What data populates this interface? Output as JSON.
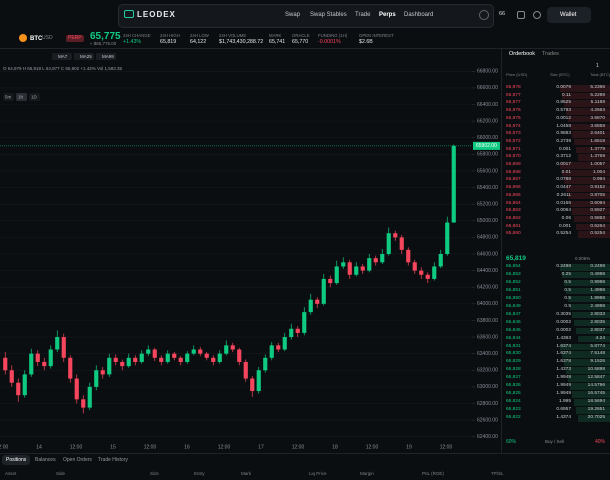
{
  "nav": {
    "logo": "LEODEX",
    "links": [
      "Swap",
      "Swap Stables",
      "Trade",
      "Perps",
      "Dashboard"
    ],
    "badge": "66",
    "wallet": "Wallet"
  },
  "ticker": {
    "symbol": "BTC",
    "quote": "USD",
    "tag": "PERP",
    "price": "65,775",
    "price_usd": "≈ $65,775.00",
    "stats": [
      {
        "label": "24H CHANGE",
        "value": "+1.43%"
      },
      {
        "label": "24H HIGH",
        "value": "65,819"
      },
      {
        "label": "24H LOW",
        "value": "64,122"
      },
      {
        "label": "24H VOLUME",
        "value": "$1,743,430,288.72"
      },
      {
        "label": "MARK",
        "value": "65,741"
      },
      {
        "label": "ORACLE",
        "value": "65,770"
      },
      {
        "label": "FUNDING (1H)",
        "value": "-0.0001%"
      },
      {
        "label": "OPEN INTEREST",
        "value": "$2.6B"
      }
    ]
  },
  "chart_data": {
    "type": "candlestick",
    "indicators": [
      "MA7",
      "MA25",
      "MA99"
    ],
    "intervals": [
      "5m",
      "1h",
      "1D"
    ],
    "ohlc_line": "O 64,979 H 65,918 L 64,977 C 65,902 +1.42% Vol 1,583.35",
    "x_labels": [
      "12:00",
      "14",
      "12:00",
      "15",
      "12:00",
      "16",
      "12:00",
      "17",
      "12:00",
      "18",
      "12:00",
      "19",
      "12:00"
    ],
    "ylim": [
      62300,
      66900
    ],
    "yticks": [
      {
        "value": 66800,
        "label": "66800.00"
      },
      {
        "value": 66600,
        "label": "66600.00"
      },
      {
        "value": 66400,
        "label": "66400.00"
      },
      {
        "value": 66200,
        "label": "66200.00"
      },
      {
        "value": 66000,
        "label": "66000.00"
      },
      {
        "value": 65800,
        "label": "65800.00"
      },
      {
        "value": 65600,
        "label": "65600.00"
      },
      {
        "value": 65400,
        "label": "65400.00"
      },
      {
        "value": 65200,
        "label": "65200.00"
      },
      {
        "value": 65000,
        "label": "65000.00"
      },
      {
        "value": 64800,
        "label": "64800.00"
      },
      {
        "value": 64600,
        "label": "64600.00"
      },
      {
        "value": 64400,
        "label": "64400.00"
      },
      {
        "value": 64200,
        "label": "64200.00"
      },
      {
        "value": 64000,
        "label": "64000.00"
      },
      {
        "value": 63800,
        "label": "63800.00"
      },
      {
        "value": 63600,
        "label": "63600.00"
      },
      {
        "value": 63400,
        "label": "63400.00"
      },
      {
        "value": 63200,
        "label": "63200.00"
      },
      {
        "value": 63000,
        "label": "63000.00"
      },
      {
        "value": 62800,
        "label": "62800.00"
      },
      {
        "value": 62600,
        "label": "62600.00"
      },
      {
        "value": 62400,
        "label": "62400.00"
      }
    ],
    "price_tag": {
      "value": 65902,
      "label": "65902.00"
    },
    "up_color": "#0ecb81",
    "down_color": "#f6465d",
    "candles": [
      [
        63350,
        63420,
        63150,
        63200
      ],
      [
        63200,
        63260,
        63000,
        63050
      ],
      [
        63050,
        63100,
        62820,
        62900
      ],
      [
        62900,
        63200,
        62870,
        63150
      ],
      [
        63150,
        63460,
        63120,
        63400
      ],
      [
        63400,
        63440,
        63250,
        63300
      ],
      [
        63300,
        63350,
        63200,
        63250
      ],
      [
        63250,
        63500,
        63220,
        63450
      ],
      [
        63450,
        63680,
        63420,
        63600
      ],
      [
        63600,
        63640,
        63300,
        63350
      ],
      [
        63350,
        63380,
        63050,
        63100
      ],
      [
        63100,
        63150,
        62800,
        62850
      ],
      [
        62850,
        62900,
        62680,
        62750
      ],
      [
        62750,
        63050,
        62720,
        63000
      ],
      [
        63000,
        63260,
        62960,
        63200
      ],
      [
        63200,
        63240,
        63100,
        63150
      ],
      [
        63150,
        63400,
        63120,
        63350
      ],
      [
        63350,
        63390,
        63260,
        63300
      ],
      [
        63300,
        63330,
        63200,
        63250
      ],
      [
        63250,
        63400,
        63230,
        63350
      ],
      [
        63350,
        63380,
        63260,
        63300
      ],
      [
        63300,
        63440,
        63280,
        63400
      ],
      [
        63400,
        63500,
        63370,
        63450
      ],
      [
        63450,
        63470,
        63310,
        63350
      ],
      [
        63350,
        63380,
        63260,
        63300
      ],
      [
        63300,
        63440,
        63280,
        63400
      ],
      [
        63400,
        63420,
        63320,
        63350
      ],
      [
        63350,
        63370,
        63260,
        63300
      ],
      [
        63300,
        63430,
        63280,
        63400
      ],
      [
        63400,
        63500,
        63380,
        63450
      ],
      [
        63450,
        63480,
        63370,
        63400
      ],
      [
        63400,
        63420,
        63320,
        63350
      ],
      [
        63350,
        63380,
        63260,
        63300
      ],
      [
        63300,
        63440,
        63280,
        63400
      ],
      [
        63400,
        63560,
        63380,
        63500
      ],
      [
        63500,
        63530,
        63420,
        63450
      ],
      [
        63450,
        63470,
        63260,
        63300
      ],
      [
        63300,
        63330,
        63060,
        63100
      ],
      [
        63100,
        63130,
        62880,
        62950
      ],
      [
        62950,
        63240,
        62920,
        63200
      ],
      [
        63200,
        63390,
        63170,
        63350
      ],
      [
        63350,
        63540,
        63320,
        63500
      ],
      [
        63500,
        63530,
        63420,
        63450
      ],
      [
        63450,
        63650,
        63430,
        63600
      ],
      [
        63600,
        63760,
        63570,
        63700
      ],
      [
        63700,
        63730,
        63600,
        63650
      ],
      [
        63650,
        63960,
        63620,
        63900
      ],
      [
        63900,
        64120,
        63870,
        64050
      ],
      [
        64050,
        64080,
        63950,
        64000
      ],
      [
        64000,
        64360,
        63980,
        64300
      ],
      [
        64300,
        64340,
        64200,
        64250
      ],
      [
        64250,
        64520,
        64230,
        64450
      ],
      [
        64450,
        64560,
        64420,
        64500
      ],
      [
        64500,
        64530,
        64300,
        64350
      ],
      [
        64350,
        64500,
        64330,
        64450
      ],
      [
        64450,
        64480,
        64360,
        64400
      ],
      [
        64400,
        64600,
        64380,
        64550
      ],
      [
        64550,
        64580,
        64460,
        64500
      ],
      [
        64500,
        64660,
        64480,
        64600
      ],
      [
        64600,
        64920,
        64580,
        64850
      ],
      [
        64850,
        64880,
        64760,
        64800
      ],
      [
        64800,
        64830,
        64600,
        64650
      ],
      [
        64650,
        64680,
        64460,
        64500
      ],
      [
        64500,
        64530,
        64360,
        64400
      ],
      [
        64400,
        64440,
        64300,
        64350
      ],
      [
        64350,
        64380,
        64250,
        64300
      ],
      [
        64300,
        64500,
        64280,
        64450
      ],
      [
        64450,
        64650,
        64430,
        64600
      ],
      [
        64600,
        65050,
        64580,
        64979
      ],
      [
        64979,
        65918,
        64977,
        65902
      ]
    ]
  },
  "orderbook": {
    "tabs": [
      "Orderbook",
      "Trades"
    ],
    "grouping": "1",
    "headers": [
      "Price (USD)",
      "Size (BTC)",
      "Total (BTC)"
    ],
    "asks": [
      [
        "65,878",
        "0.0079",
        "5.2366"
      ],
      [
        "65,877",
        "0.11",
        "5.2288"
      ],
      [
        "65,877",
        "0.8525",
        "5.1188"
      ],
      [
        "65,876",
        "0.5793",
        "4.2663"
      ],
      [
        "65,875",
        "0.0012",
        "3.6870"
      ],
      [
        "65,874",
        "1.0458",
        "3.6858"
      ],
      [
        "65,873",
        "0.9883",
        "2.6401"
      ],
      [
        "65,872",
        "0.2739",
        "1.6518"
      ],
      [
        "65,871",
        "0.001",
        "1.3779"
      ],
      [
        "65,870",
        "0.3712",
        "1.3769"
      ],
      [
        "65,869",
        "0.0017",
        "1.0057"
      ],
      [
        "65,868",
        "0.01",
        "1.004"
      ],
      [
        "65,867",
        "0.0788",
        "0.994"
      ],
      [
        "65,866",
        "0.0447",
        "0.9152"
      ],
      [
        "65,865",
        "0.2611",
        "0.8705"
      ],
      [
        "65,864",
        "0.0166",
        "0.6094"
      ],
      [
        "65,863",
        "0.0064",
        "0.5927"
      ],
      [
        "65,862",
        "0.06",
        "0.5863"
      ],
      [
        "65,861",
        "0.001",
        "0.5264"
      ],
      [
        "65,860",
        "0.5254",
        "0.5254"
      ]
    ],
    "mid": {
      "price": "65,819",
      "change": "0.006%"
    },
    "bids": [
      [
        "65,854",
        "0.2498",
        "0.2498"
      ],
      [
        "65,853",
        "0.25",
        "0.4998"
      ],
      [
        "65,852",
        "0.5",
        "0.9998"
      ],
      [
        "65,851",
        "0.5",
        "1.4998"
      ],
      [
        "65,850",
        "0.5",
        "1.9998"
      ],
      [
        "65,849",
        "0.5",
        "2.4998"
      ],
      [
        "65,847",
        "0.3035",
        "2.8033"
      ],
      [
        "65,846",
        "0.0002",
        "2.8035"
      ],
      [
        "65,845",
        "0.0002",
        "2.8037"
      ],
      [
        "65,844",
        "1.4363",
        "4.24"
      ],
      [
        "65,831",
        "1.6374",
        "5.8774"
      ],
      [
        "65,830",
        "1.6374",
        "7.5148"
      ],
      [
        "65,829",
        "1.6378",
        "9.1526"
      ],
      [
        "65,828",
        "1.4373",
        "10.5898"
      ],
      [
        "65,827",
        "1.9949",
        "12.5847"
      ],
      [
        "65,826",
        "1.9949",
        "14.5796"
      ],
      [
        "65,825",
        "1.9949",
        "16.5745"
      ],
      [
        "65,824",
        "1.995",
        "18.5694"
      ],
      [
        "65,823",
        "0.6957",
        "19.2651"
      ],
      [
        "65,822",
        "1.4374",
        "20.7025"
      ]
    ],
    "ratio": {
      "buy": "60%",
      "label": "Buy / Sell",
      "sell": "40%"
    }
  },
  "positions": {
    "tabs": [
      "Positions",
      "Balances",
      "Open Orders",
      "Trade History"
    ],
    "headers": [
      "Asset",
      "Side",
      "Size",
      "Entry",
      "Mark",
      "Liq Price",
      "Margin",
      "PnL (ROE)",
      "TP/SL"
    ]
  }
}
